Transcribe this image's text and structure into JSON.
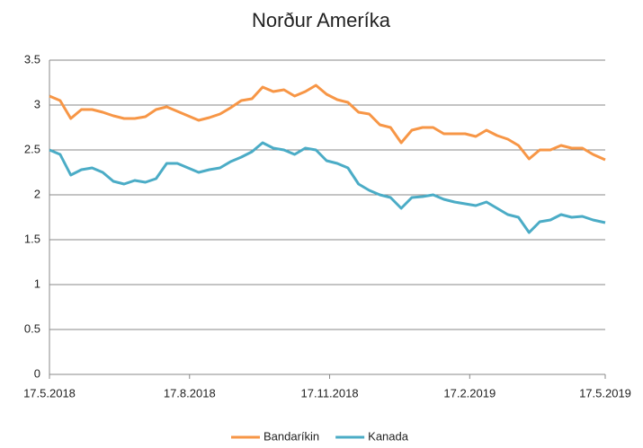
{
  "chart_data": {
    "type": "line",
    "title": "Norður Ameríka",
    "x": [
      "2018-05-17",
      "2018-05-24",
      "2018-05-31",
      "2018-06-07",
      "2018-06-14",
      "2018-06-21",
      "2018-06-28",
      "2018-07-05",
      "2018-07-12",
      "2018-07-19",
      "2018-07-26",
      "2018-08-02",
      "2018-08-09",
      "2018-08-16",
      "2018-08-23",
      "2018-08-30",
      "2018-09-06",
      "2018-09-13",
      "2018-09-20",
      "2018-09-27",
      "2018-10-04",
      "2018-10-11",
      "2018-10-18",
      "2018-10-25",
      "2018-11-01",
      "2018-11-08",
      "2018-11-15",
      "2018-11-22",
      "2018-11-29",
      "2018-12-06",
      "2018-12-13",
      "2018-12-20",
      "2018-12-27",
      "2019-01-03",
      "2019-01-10",
      "2019-01-17",
      "2019-01-24",
      "2019-01-31",
      "2019-02-07",
      "2019-02-14",
      "2019-02-21",
      "2019-02-28",
      "2019-03-07",
      "2019-03-14",
      "2019-03-21",
      "2019-03-28",
      "2019-04-04",
      "2019-04-11",
      "2019-04-18",
      "2019-04-25",
      "2019-05-02",
      "2019-05-09",
      "2019-05-17"
    ],
    "series": [
      {
        "name": "Bandaríkin",
        "color": "#f79646",
        "values": [
          3.1,
          3.05,
          2.85,
          2.95,
          2.95,
          2.92,
          2.88,
          2.85,
          2.85,
          2.87,
          2.95,
          2.98,
          2.93,
          2.88,
          2.83,
          2.86,
          2.9,
          2.97,
          3.05,
          3.07,
          3.2,
          3.15,
          3.17,
          3.1,
          3.15,
          3.22,
          3.12,
          3.06,
          3.03,
          2.92,
          2.9,
          2.78,
          2.75,
          2.58,
          2.72,
          2.75,
          2.75,
          2.68,
          2.68,
          2.68,
          2.65,
          2.72,
          2.66,
          2.62,
          2.55,
          2.4,
          2.5,
          2.5,
          2.55,
          2.52,
          2.52,
          2.45,
          2.39
        ]
      },
      {
        "name": "Kanada",
        "color": "#4bacc6",
        "values": [
          2.5,
          2.45,
          2.22,
          2.28,
          2.3,
          2.25,
          2.15,
          2.12,
          2.16,
          2.14,
          2.18,
          2.35,
          2.35,
          2.3,
          2.25,
          2.28,
          2.3,
          2.37,
          2.42,
          2.48,
          2.58,
          2.52,
          2.5,
          2.45,
          2.52,
          2.5,
          2.38,
          2.35,
          2.3,
          2.12,
          2.05,
          2.0,
          1.97,
          1.85,
          1.97,
          1.98,
          2.0,
          1.95,
          1.92,
          1.9,
          1.88,
          1.92,
          1.85,
          1.78,
          1.75,
          1.58,
          1.7,
          1.72,
          1.78,
          1.75,
          1.76,
          1.72,
          1.69
        ]
      }
    ],
    "xlim": [
      "2018-05-17",
      "2019-05-17"
    ],
    "xticks": [
      {
        "value": "2018-05-17",
        "label": "17.5.2018"
      },
      {
        "value": "2018-08-17",
        "label": "17.8.2018"
      },
      {
        "value": "2018-11-17",
        "label": "17.11.2018"
      },
      {
        "value": "2019-02-17",
        "label": "17.2.2019"
      },
      {
        "value": "2019-05-17",
        "label": "17.5.2019"
      }
    ],
    "ylim": [
      0,
      3.5
    ],
    "yticks": [
      0,
      0.5,
      1,
      1.5,
      2,
      2.5,
      3,
      3.5
    ],
    "grid": true,
    "legend": "bottom"
  }
}
